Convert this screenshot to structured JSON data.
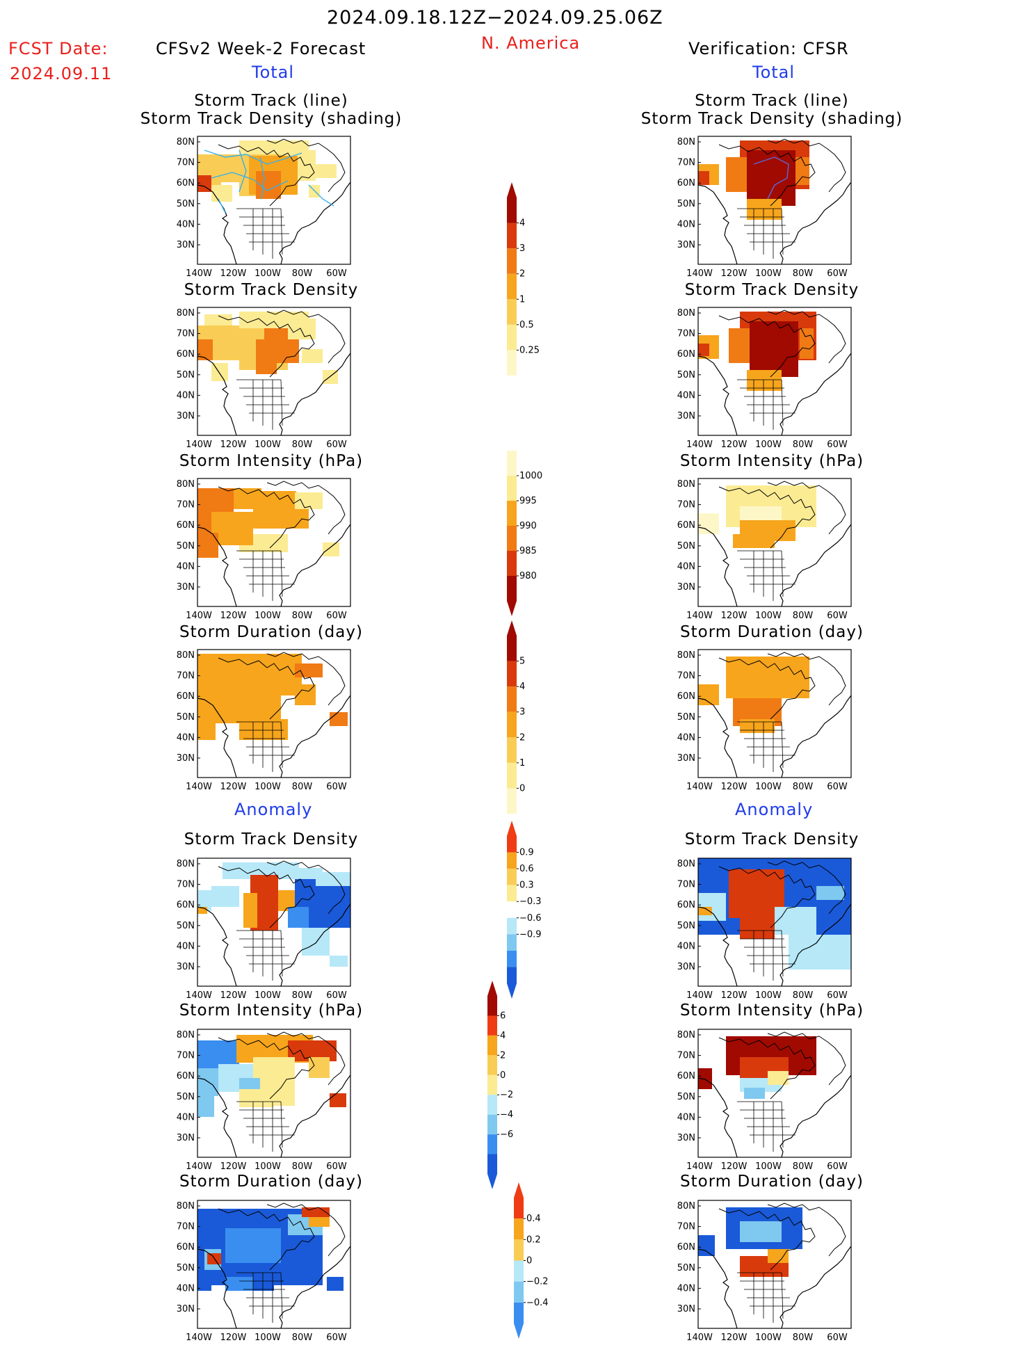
{
  "header": {
    "period": "2024.09.18.12Z−2024.09.25.06Z",
    "fcst_label": "FCST Date:",
    "fcst_date": "2024.09.11",
    "left_title": "CFSv2 Week-2 Forecast",
    "region": "N. America",
    "right_title": "Verification: CFSR",
    "total_left": "Total",
    "total_right": "Total",
    "anomaly_left": "Anomaly",
    "anomaly_right": "Anomaly"
  },
  "panel_titles": {
    "track_line": "Storm Track (line)",
    "track_shading": "Storm Track Density (shading)",
    "density": "Storm Track Density",
    "intensity": "Storm Intensity (hPa)",
    "duration": "Storm Duration (day)"
  },
  "axes": {
    "lat_labels": [
      "80N",
      "70N",
      "60N",
      "50N",
      "40N",
      "30N"
    ],
    "lon_labels": [
      "140W",
      "120W",
      "100W",
      "80W",
      "60W"
    ]
  },
  "colorbars": {
    "density_total": {
      "labels": [
        "4",
        "3",
        "2",
        "1",
        "0.5",
        "0.25"
      ],
      "colors": [
        "#a00a00",
        "#d93a0c",
        "#f07a14",
        "#f7a51c",
        "#f9cd55",
        "#fbeb93",
        "#fdf7c8"
      ]
    },
    "intensity_total": {
      "labels": [
        "1000",
        "995",
        "990",
        "985",
        "980"
      ],
      "colors": [
        "#fdf7c8",
        "#fbeb93",
        "#f7a51c",
        "#f07a14",
        "#d93a0c",
        "#a00a00"
      ]
    },
    "duration_total": {
      "labels": [
        "5",
        "4",
        "3",
        "2",
        "1",
        "0"
      ],
      "colors": [
        "#a00a00",
        "#d93a0c",
        "#f07a14",
        "#f7a51c",
        "#f9cd55",
        "#fbeb93",
        "#fdf7c8"
      ]
    },
    "density_anom": {
      "labels": [
        "0.9",
        "0.6",
        "0.3",
        "−0.3",
        "−0.6",
        "−0.9"
      ],
      "colors": [
        "#f03c14",
        "#f7a51c",
        "#f9cd55",
        "#fbeb93",
        "#ffffff",
        "#b6e8f8",
        "#7fc8f0",
        "#3a8ef0",
        "#1a5ad8"
      ]
    },
    "intensity_anom": {
      "labels": [
        "6",
        "4",
        "2",
        "0",
        "−2",
        "−4",
        "−6"
      ],
      "colors": [
        "#a00a00",
        "#f03c14",
        "#f7a51c",
        "#f9cd55",
        "#fbeb93",
        "#b6e8f8",
        "#7fc8f0",
        "#3a8ef0",
        "#1a5ad8"
      ]
    },
    "duration_anom": {
      "labels": [
        "0.4",
        "0.2",
        "0",
        "−0.2",
        "−0.4"
      ],
      "colors": [
        "#f03c14",
        "#f7a51c",
        "#f9cd55",
        "#b6e8f8",
        "#7fc8f0",
        "#3a8ef0"
      ]
    }
  },
  "palette": {
    "light_yellow": "#fdf7c8",
    "yellow": "#fbeb93",
    "orange_light": "#f9cd55",
    "orange": "#f7a51c",
    "orange_dark": "#f07a14",
    "red": "#d93a0c",
    "dark_red": "#a00a00",
    "light_blue": "#b6e8f8",
    "mid_blue": "#7fc8f0",
    "blue": "#3a8ef0",
    "dark_blue": "#1a5ad8",
    "track_line": "#3ab0e8"
  }
}
